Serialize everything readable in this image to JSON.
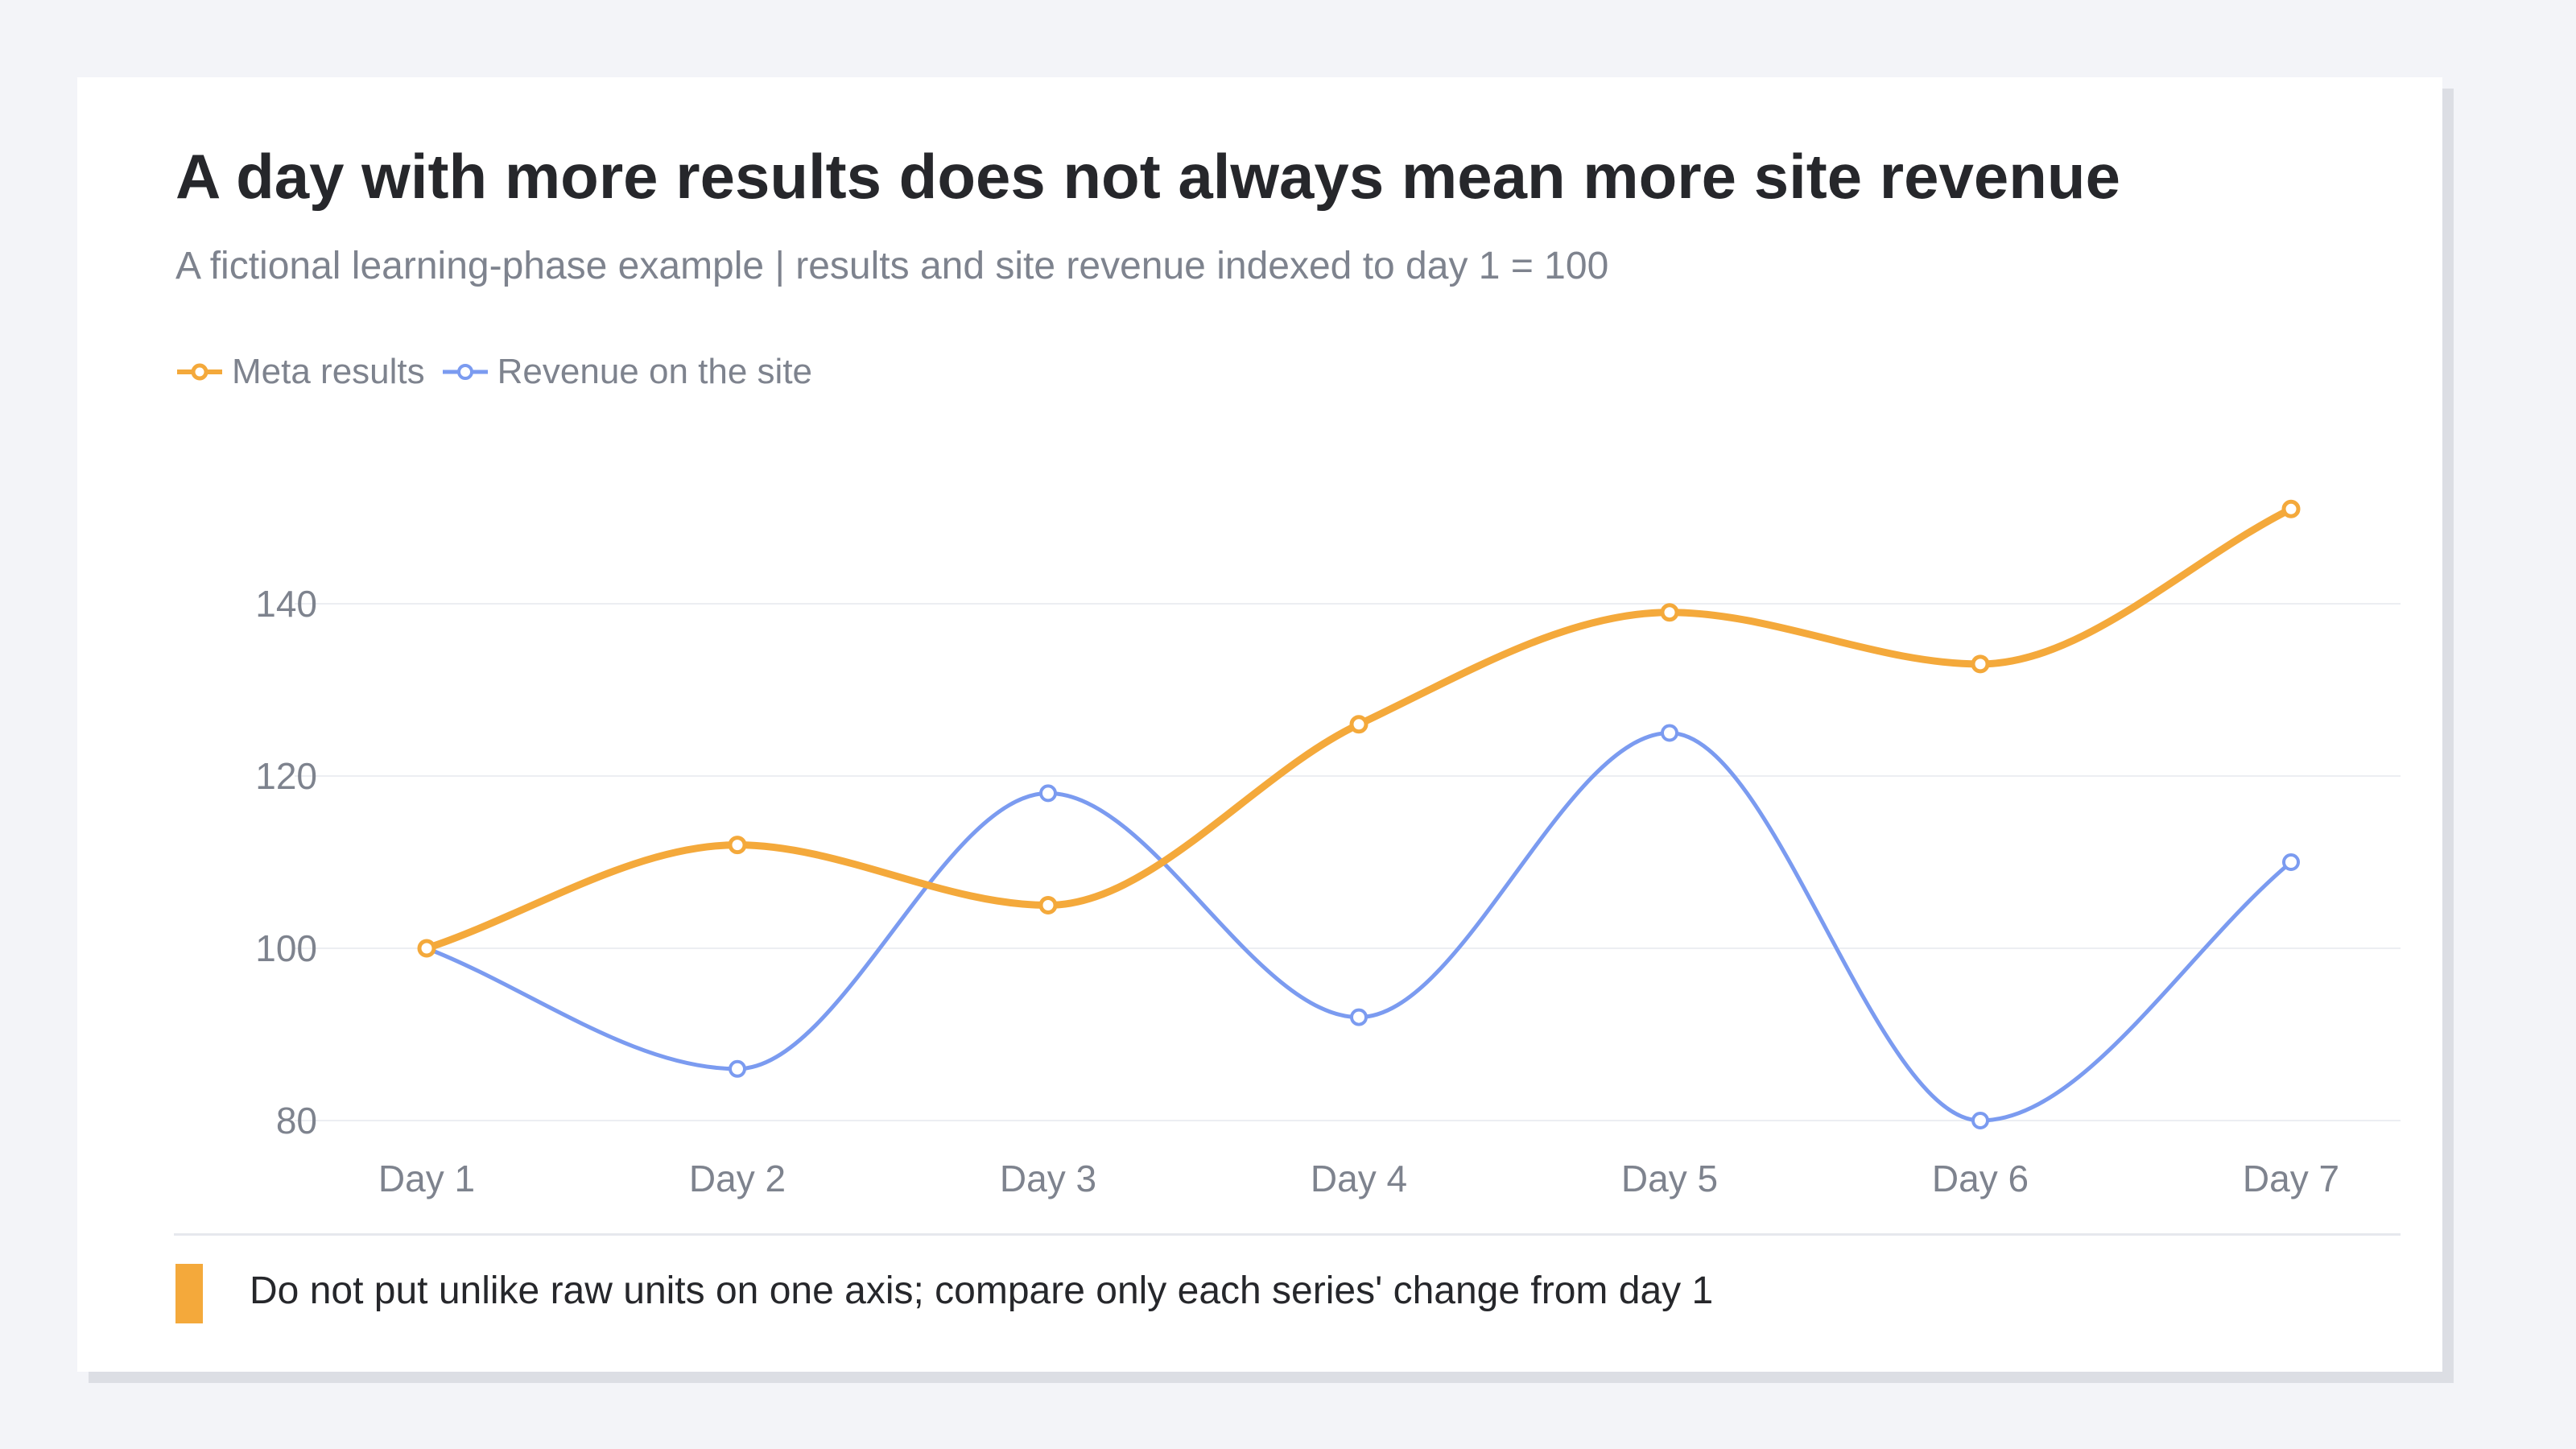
{
  "title": "A day with more results does not always mean more site revenue",
  "subtitle": "A fictional learning-phase example | results and site revenue indexed to day 1 = 100",
  "footnote": "Do not put unlike raw units on one axis; compare only each series' change from day 1",
  "colors": {
    "page_background": "#f3f4f8",
    "card_background": "#ffffff",
    "meta_results": "#f4a93b",
    "site_revenue": "#7b9bf0",
    "gridline": "#eceef2",
    "text_muted": "#7e838e",
    "text_dark": "#26272b"
  },
  "chart_data": {
    "type": "line",
    "title": "",
    "xlabel": "",
    "ylabel": "",
    "categories": [
      "Day 1",
      "Day 2",
      "Day 3",
      "Day 4",
      "Day 5",
      "Day 6",
      "Day 7"
    ],
    "series": [
      {
        "name": "Meta results",
        "color": "#f4a93b",
        "values": [
          100,
          112,
          105,
          126,
          139,
          133,
          151
        ]
      },
      {
        "name": "Revenue on the site",
        "color": "#7b9bf0",
        "values": [
          100,
          86,
          118,
          92,
          125,
          80,
          110
        ]
      }
    ],
    "yticks": [
      80,
      100,
      120,
      140
    ],
    "ylim": [
      80,
      140
    ],
    "grid": true,
    "smooth": true,
    "legend": "top-left"
  }
}
